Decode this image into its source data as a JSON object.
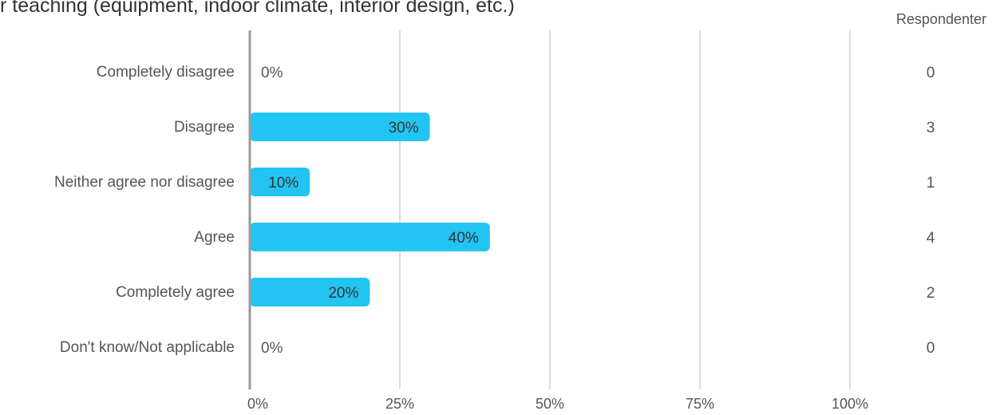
{
  "title": "r teaching (equipment, indoor climate, interior design, etc.)",
  "respondents_header": "Respondenter",
  "colors": {
    "bar": "#22c5f2",
    "grid": "#bbbbbb",
    "axis": "#999999",
    "label": "#555555",
    "bar_label": "#333333"
  },
  "chart_data": {
    "type": "bar",
    "orientation": "horizontal",
    "title": "r teaching (equipment, indoor climate, interior design, etc.)",
    "categories": [
      "Completely disagree",
      "Disagree",
      "Neither agree nor disagree",
      "Agree",
      "Completely agree",
      "Don't know/Not applicable"
    ],
    "values": [
      0,
      30,
      10,
      40,
      20,
      0
    ],
    "value_labels": [
      "0%",
      "30%",
      "10%",
      "40%",
      "20%",
      "0%"
    ],
    "respondents": [
      "0",
      "3",
      "1",
      "4",
      "2",
      "0"
    ],
    "xlim": [
      0,
      100
    ],
    "xticks": [
      0,
      25,
      50,
      75,
      100
    ],
    "xtick_labels": [
      "0%",
      "25%",
      "50%",
      "75%",
      "100%"
    ],
    "grid": true
  }
}
